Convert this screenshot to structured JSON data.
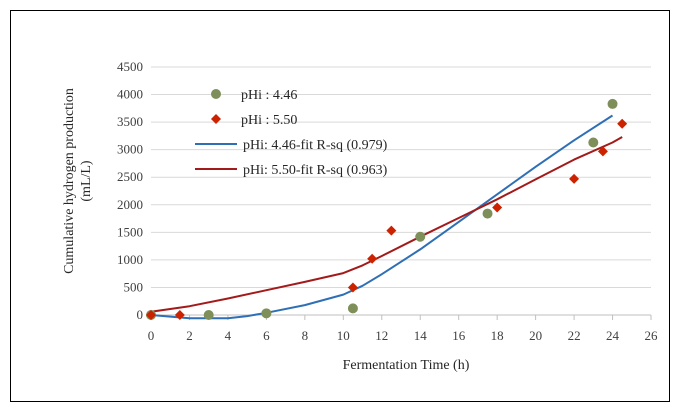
{
  "chart_data": {
    "type": "scatter",
    "xlabel": "Fermentation Time (h)",
    "ylabel": "Cumulative hydrogen production (mL/L)",
    "xlim": [
      0,
      26
    ],
    "ylim": [
      0,
      4500
    ],
    "xticks": [
      0,
      2,
      4,
      6,
      8,
      10,
      12,
      14,
      16,
      18,
      20,
      22,
      24,
      26
    ],
    "yticks": [
      0,
      500,
      1000,
      1500,
      2000,
      2500,
      3000,
      3500,
      4000,
      4500
    ],
    "grid": "horizontal",
    "legend_position": "top-left",
    "series": [
      {
        "name": "pHi : 4.46",
        "kind": "points",
        "marker": "circle",
        "color": "#7f8f5a",
        "x": [
          0,
          3,
          6,
          10.5,
          14,
          17.5,
          23,
          24
        ],
        "y": [
          0,
          0,
          30,
          120,
          1420,
          1840,
          3130,
          3830
        ]
      },
      {
        "name": "pHi : 5.50",
        "kind": "points",
        "marker": "diamond",
        "color": "#cc2200",
        "x": [
          0,
          1.5,
          10.5,
          11.5,
          12.5,
          18,
          22,
          23.5,
          24.5
        ],
        "y": [
          0,
          0,
          500,
          1020,
          1530,
          1950,
          2470,
          2970,
          3470
        ]
      },
      {
        "name": "pHi: 4.46-fit R-sq (0.979)",
        "kind": "line",
        "color": "#2e6fb5",
        "x": [
          0,
          2,
          4,
          5,
          6,
          8,
          10,
          11,
          12,
          14,
          16,
          18,
          20,
          22,
          24
        ],
        "y": [
          0,
          -60,
          -60,
          -20,
          40,
          180,
          370,
          530,
          740,
          1190,
          1690,
          2190,
          2690,
          3170,
          3620
        ]
      },
      {
        "name": "pHi: 5.50-fit R-sq (0.963)",
        "kind": "line",
        "color": "#a31a1a",
        "x": [
          0,
          2,
          4,
          6,
          8,
          10,
          11,
          12,
          14,
          16,
          18,
          20,
          22,
          24,
          24.5
        ],
        "y": [
          60,
          160,
          300,
          450,
          600,
          760,
          900,
          1070,
          1420,
          1760,
          2100,
          2460,
          2820,
          3130,
          3230
        ]
      }
    ]
  }
}
